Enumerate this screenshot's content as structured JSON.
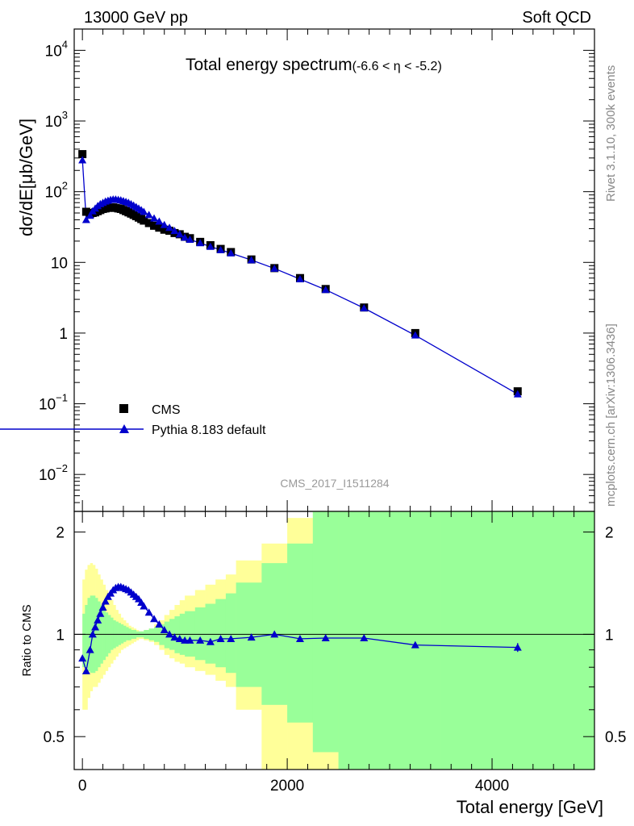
{
  "header": {
    "left": "13000 GeV pp",
    "right": "Soft QCD"
  },
  "side": {
    "rivet": "Rivet 3.1.10,  300k events",
    "mcplots": "mcplots.cern.ch [arXiv:1306.3436]"
  },
  "chart_data": [
    {
      "type": "scatter",
      "title": "Total energy spectrum",
      "title_suffix": "(-6.6 < η < -5.2)",
      "watermark": "CMS_2017_I1511284",
      "ylabel": "dσ/dE[μb/GeV]",
      "yscale": "log",
      "ylim": [
        0.003,
        20000
      ],
      "xlim": [
        -80,
        5000
      ],
      "y_ticks": [
        {
          "base": "10",
          "exp": "4"
        },
        {
          "base": "10",
          "exp": "3"
        },
        {
          "base": "10",
          "exp": "2"
        },
        {
          "base": "10",
          "exp": ""
        },
        {
          "base": "1",
          "exp": ""
        },
        {
          "base": "10",
          "exp": "−1"
        },
        {
          "base": "10",
          "exp": "−2"
        }
      ],
      "legend": [
        "CMS",
        "Pythia 8.183 default"
      ],
      "series": [
        {
          "name": "CMS",
          "x": [
            0,
            37,
            75,
            100,
            125,
            150,
            175,
            200,
            225,
            250,
            275,
            300,
            325,
            350,
            375,
            400,
            425,
            450,
            475,
            500,
            525,
            550,
            575,
            600,
            650,
            700,
            750,
            800,
            850,
            900,
            950,
            1000,
            1050,
            1150,
            1250,
            1350,
            1450,
            1650,
            1875,
            2125,
            2375,
            2750,
            3250,
            4250
          ],
          "y": [
            340,
            52,
            49,
            50,
            51,
            53,
            55,
            57,
            58,
            59,
            60,
            60,
            59,
            58,
            57,
            55,
            53,
            51,
            49,
            47,
            45,
            43,
            41,
            39,
            36,
            33,
            31,
            29,
            28,
            26,
            25,
            23,
            22,
            19.5,
            17.5,
            15.5,
            14,
            11,
            8.3,
            6.0,
            4.2,
            2.3,
            1.0,
            0.15
          ]
        },
        {
          "name": "Pythia 8.183 default",
          "x": [
            0,
            37,
            75,
            100,
            125,
            150,
            175,
            200,
            225,
            250,
            275,
            300,
            325,
            350,
            375,
            400,
            425,
            450,
            475,
            500,
            525,
            550,
            575,
            600,
            650,
            700,
            750,
            800,
            850,
            900,
            950,
            1000,
            1050,
            1150,
            1250,
            1350,
            1450,
            1650,
            1875,
            2125,
            2375,
            2750,
            3250,
            4250
          ],
          "y": [
            280,
            40,
            46,
            53,
            58,
            63,
            67,
            70,
            73,
            75,
            77,
            78,
            78,
            77,
            76,
            74,
            72,
            70,
            67,
            64,
            61,
            58,
            55,
            52,
            47,
            42,
            38,
            34,
            31,
            28,
            25,
            22.5,
            21,
            18.8,
            16.7,
            15,
            13.5,
            10.8,
            8.2,
            5.8,
            4.1,
            2.25,
            0.93,
            0.137
          ]
        }
      ]
    },
    {
      "type": "line",
      "ylabel": "Ratio to CMS",
      "xlabel": "Total energy [GeV]",
      "yscale": "log",
      "ylim": [
        0.4,
        2.3
      ],
      "xlim": [
        -80,
        5000
      ],
      "x_ticks": [
        "0",
        "2000",
        "4000"
      ],
      "y_ticks": [
        "0.5",
        "1",
        "2"
      ],
      "bands": {
        "edges": [
          0,
          25,
          50,
          75,
          100,
          125,
          150,
          175,
          200,
          225,
          250,
          275,
          300,
          325,
          350,
          375,
          400,
          425,
          450,
          475,
          500,
          525,
          550,
          575,
          600,
          650,
          700,
          750,
          800,
          850,
          900,
          950,
          1000,
          1100,
          1200,
          1300,
          1400,
          1500,
          1750,
          2000,
          2250,
          2500,
          3000,
          3500,
          5000
        ],
        "yellow_low": [
          0.6,
          0.6,
          0.65,
          0.68,
          0.7,
          0.7,
          0.72,
          0.74,
          0.76,
          0.78,
          0.8,
          0.82,
          0.84,
          0.86,
          0.88,
          0.9,
          0.91,
          0.92,
          0.93,
          0.94,
          0.95,
          0.96,
          0.97,
          0.97,
          0.96,
          0.95,
          0.93,
          0.9,
          0.87,
          0.85,
          0.83,
          0.82,
          0.8,
          0.78,
          0.76,
          0.73,
          0.7,
          0.6,
          0.38,
          0.38,
          0.38,
          0.38,
          0.38,
          0.38
        ],
        "yellow_high": [
          1.45,
          1.55,
          1.6,
          1.62,
          1.6,
          1.56,
          1.5,
          1.45,
          1.4,
          1.35,
          1.3,
          1.26,
          1.22,
          1.18,
          1.15,
          1.12,
          1.1,
          1.08,
          1.06,
          1.05,
          1.04,
          1.03,
          1.02,
          1.02,
          1.03,
          1.04,
          1.07,
          1.1,
          1.14,
          1.18,
          1.22,
          1.26,
          1.3,
          1.35,
          1.4,
          1.45,
          1.5,
          1.65,
          1.85,
          2.2,
          2.4,
          2.4,
          2.4,
          2.4
        ],
        "green_low": [
          0.8,
          0.8,
          0.78,
          0.77,
          0.77,
          0.78,
          0.8,
          0.82,
          0.84,
          0.86,
          0.88,
          0.9,
          0.91,
          0.92,
          0.93,
          0.94,
          0.95,
          0.96,
          0.96,
          0.97,
          0.97,
          0.98,
          0.98,
          0.98,
          0.97,
          0.96,
          0.95,
          0.93,
          0.91,
          0.9,
          0.88,
          0.87,
          0.86,
          0.84,
          0.82,
          0.8,
          0.77,
          0.7,
          0.62,
          0.55,
          0.45,
          0.38,
          0.38,
          0.38
        ],
        "green_high": [
          1.15,
          1.22,
          1.28,
          1.3,
          1.3,
          1.28,
          1.25,
          1.22,
          1.19,
          1.16,
          1.14,
          1.12,
          1.1,
          1.09,
          1.08,
          1.07,
          1.06,
          1.05,
          1.04,
          1.03,
          1.03,
          1.02,
          1.02,
          1.02,
          1.03,
          1.04,
          1.05,
          1.07,
          1.09,
          1.11,
          1.13,
          1.15,
          1.17,
          1.2,
          1.23,
          1.27,
          1.32,
          1.42,
          1.62,
          1.85,
          2.4,
          2.4,
          2.4,
          2.4
        ]
      },
      "series": [
        {
          "name": "Pythia 8.183 default / CMS",
          "x": [
            0,
            37,
            75,
            100,
            125,
            150,
            175,
            200,
            225,
            250,
            275,
            300,
            325,
            350,
            375,
            400,
            425,
            450,
            475,
            500,
            525,
            550,
            575,
            600,
            650,
            700,
            750,
            800,
            850,
            900,
            950,
            1000,
            1050,
            1150,
            1250,
            1350,
            1450,
            1650,
            1875,
            2125,
            2375,
            2750,
            3250,
            4250
          ],
          "y": [
            0.85,
            0.78,
            0.9,
            1.0,
            1.05,
            1.1,
            1.15,
            1.2,
            1.25,
            1.29,
            1.32,
            1.35,
            1.37,
            1.38,
            1.38,
            1.37,
            1.36,
            1.35,
            1.33,
            1.31,
            1.29,
            1.27,
            1.24,
            1.21,
            1.16,
            1.11,
            1.07,
            1.03,
            1.0,
            0.98,
            0.97,
            0.96,
            0.96,
            0.96,
            0.95,
            0.97,
            0.97,
            0.98,
            1.0,
            0.97,
            0.975,
            0.975,
            0.93,
            0.915
          ]
        }
      ]
    }
  ]
}
